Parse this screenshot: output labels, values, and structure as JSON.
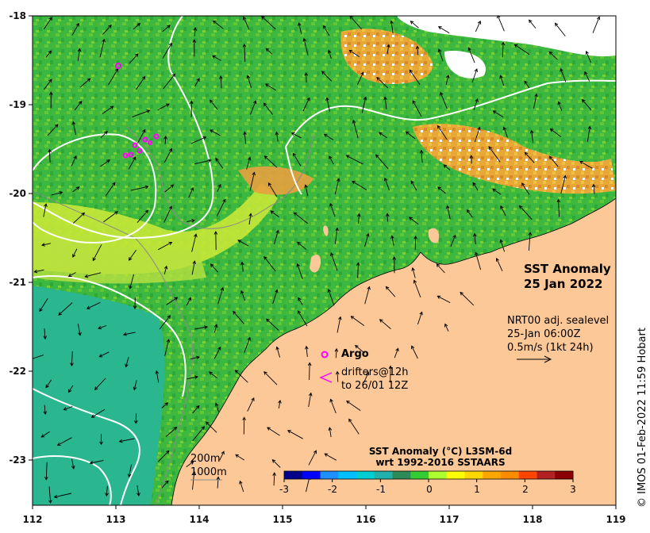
{
  "map": {
    "title_line1": "SST Anomaly",
    "title_line2": "25 Jan 2022",
    "current_info": [
      "NRT00 adj. sealevel",
      "25-Jan 06:00Z",
      "0.5m/s (1kt 24h)"
    ],
    "argo_label": "Argo",
    "argo_symbol": "o",
    "drifter_symbol": "<",
    "drifters_label": [
      "drifters@12h",
      "to 26/01 12Z"
    ],
    "isobaths": [
      "200m",
      "1000m"
    ],
    "credit": "© IMOS 01-Feb-2022 11:59 Hobart",
    "x_ticks": [
      "112",
      "113",
      "114",
      "115",
      "116",
      "117",
      "118",
      "119"
    ],
    "y_ticks": [
      "-18",
      "-19",
      "-20",
      "-21",
      "-22",
      "-23"
    ],
    "colorbar": {
      "title_line1": "SST Anomaly (°C) L3SM-6d",
      "title_line2": "wrt 1992-2016 SSTAARS",
      "ticks": [
        "-3",
        "-2",
        "-1",
        "0",
        "1",
        "2",
        "3"
      ],
      "range": [
        -3,
        3
      ],
      "colors": [
        "#00008b",
        "#0000ff",
        "#1e90ff",
        "#00bfff",
        "#00ced1",
        "#20b2aa",
        "#2e8b57",
        "#32cd32",
        "#adff2f",
        "#ffff00",
        "#ffd700",
        "#ffa500",
        "#ff8c00",
        "#ff4500",
        "#b22222",
        "#8b0000"
      ]
    },
    "colors": {
      "land": "#fdc898",
      "sea_green": "#3cb840",
      "sea_teal": "#2ab890",
      "sea_yellow": "#d8f030",
      "sea_orange": "#f0a030",
      "argo": "#ff00ff"
    }
  }
}
